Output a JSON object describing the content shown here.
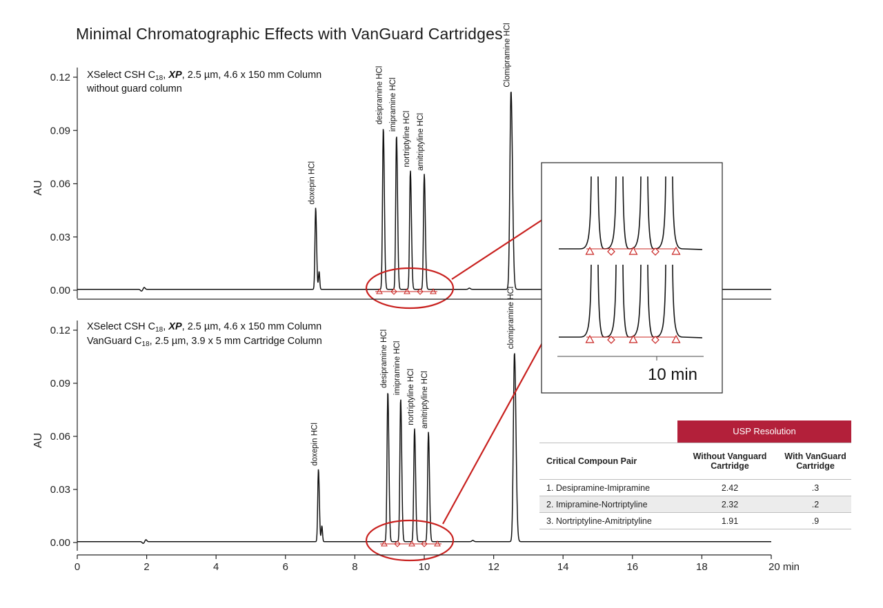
{
  "title": "Minimal Chromatographic Effects with VanGuard Cartridges",
  "chart_data": [
    {
      "type": "line",
      "panel": "top",
      "title": "",
      "column_label_line1": [
        "XSelect CSH C",
        "18",
        ", ",
        "XP",
        ", 2.5 µm, 4.6 x 150 mm Column"
      ],
      "column_label_line2": "without guard column",
      "ylabel": "AU",
      "ylim": [
        0,
        0.12
      ],
      "yticks": [
        "0.00",
        "0.03",
        "0.06",
        "0.09",
        "0.12"
      ],
      "xlim": [
        0,
        20
      ],
      "peaks": [
        {
          "name": "doxepin HCl",
          "x": 6.87,
          "y": 0.046
        },
        {
          "name": "desipramine HCl",
          "x": 8.82,
          "y": 0.091
        },
        {
          "name": "imipramine HCl",
          "x": 9.2,
          "y": 0.087
        },
        {
          "name": "nortriptyline HCl",
          "x": 9.6,
          "y": 0.067
        },
        {
          "name": "amitriptyline HCl",
          "x": 10.0,
          "y": 0.065
        },
        {
          "name": "Clomipramine HCl",
          "x": 12.5,
          "y": 0.112
        }
      ],
      "small_features": [
        {
          "x": 1.85,
          "y": -0.001
        },
        {
          "x": 11.3,
          "y": 0.0007
        }
      ]
    },
    {
      "type": "line",
      "panel": "bottom",
      "title": "",
      "column_label_line1": [
        "XSelect CSH C",
        "18",
        ", ",
        "XP",
        ", 2.5 µm, 4.6 x 150 mm Column"
      ],
      "column_label_line2": [
        "VanGuard C",
        "18",
        ", 2.5 µm, 3.9 x 5 mm Cartridge Column"
      ],
      "ylabel": "AU",
      "ylim": [
        0,
        0.12
      ],
      "yticks": [
        "0.00",
        "0.03",
        "0.06",
        "0.09",
        "0.12"
      ],
      "xlim": [
        0,
        20
      ],
      "xticks": [
        "0",
        "2",
        "4",
        "6",
        "8",
        "10",
        "12",
        "14",
        "16",
        "18",
        "20 min"
      ],
      "peaks": [
        {
          "name": "doxepin HCl",
          "x": 6.95,
          "y": 0.041
        },
        {
          "name": "desipramine HCl",
          "x": 8.95,
          "y": 0.085
        },
        {
          "name": "imipramine HCl",
          "x": 9.32,
          "y": 0.081
        },
        {
          "name": "nortriptyline HCl",
          "x": 9.72,
          "y": 0.064
        },
        {
          "name": "amitriptyline HCl",
          "x": 10.12,
          "y": 0.062
        },
        {
          "name": "clomipramine HCl",
          "x": 12.6,
          "y": 0.107
        }
      ],
      "small_features": [
        {
          "x": 1.9,
          "y": -0.001
        },
        {
          "x": 11.4,
          "y": 0.0007
        }
      ]
    }
  ],
  "inset": {
    "axis_label": "10 min"
  },
  "table": {
    "group_header": "USP Resolution",
    "headers": [
      "Critical Compoun Pair",
      "Without Vanguard Cartridge",
      "With VanGuard Cartridge"
    ],
    "rows": [
      [
        "1. Desipramine-Imipramine",
        "2.42",
        ".3"
      ],
      [
        "2. Imipramine-Nortriptyline",
        "2.32",
        ".2"
      ],
      [
        "3. Nortriptyline-Amitriptyline",
        "1.91",
        ".9"
      ]
    ]
  },
  "colors": {
    "trace": "#111111",
    "highlight": "#c8201e",
    "table_header": "#b3203a"
  }
}
